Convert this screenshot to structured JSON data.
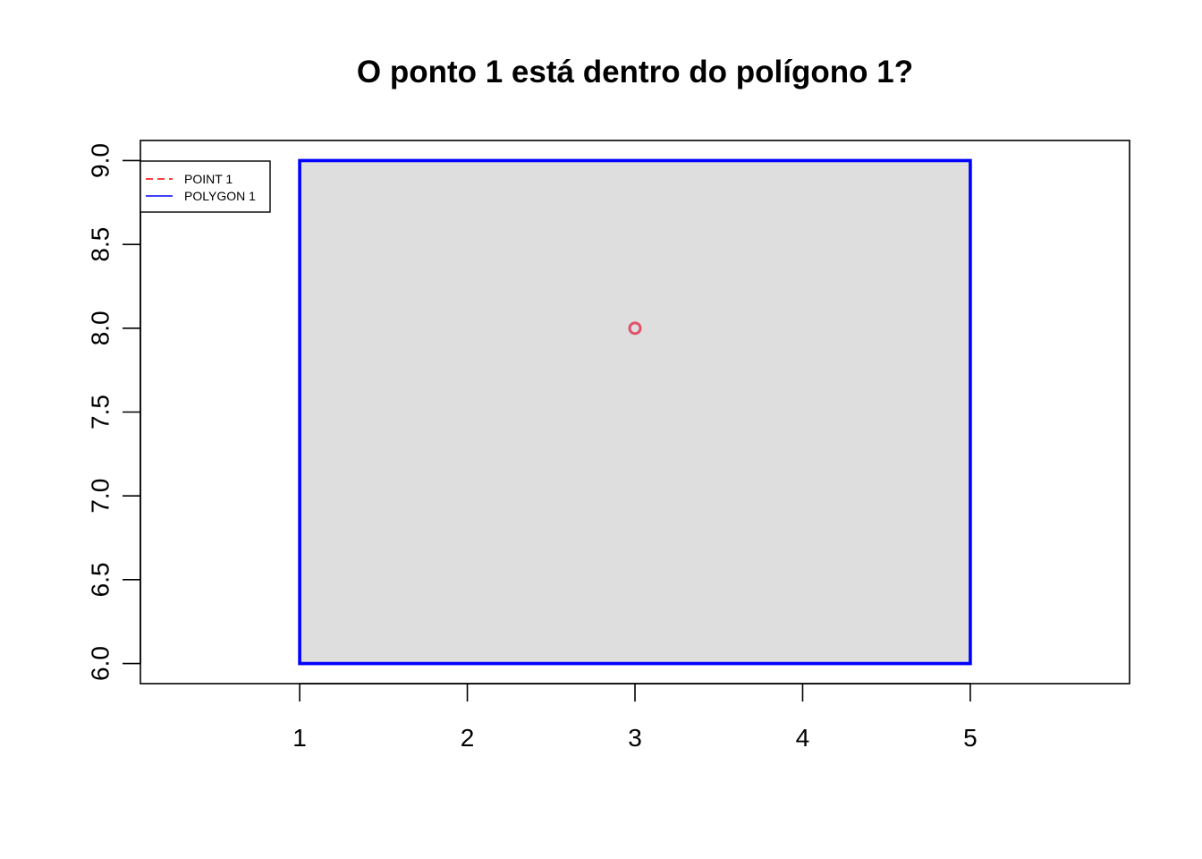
{
  "chart_data": {
    "type": "scatter",
    "title": "O ponto 1 está dentro do polígono 1?",
    "xlabel": "",
    "ylabel": "",
    "xlim": [
      0.05,
      5.95
    ],
    "ylim": [
      5.88,
      9.12
    ],
    "x_ticks": [
      1,
      2,
      3,
      4,
      5
    ],
    "x_tick_labels": [
      "1",
      "2",
      "3",
      "4",
      "5"
    ],
    "y_ticks": [
      6.0,
      6.5,
      7.0,
      7.5,
      8.0,
      8.5,
      9.0
    ],
    "y_tick_labels": [
      "6.0",
      "6.5",
      "7.0",
      "7.5",
      "8.0",
      "8.5",
      "9.0"
    ],
    "grid": false,
    "legend_position": "top-left",
    "series": [
      {
        "name": "POINT 1",
        "kind": "point",
        "color": "#DF536B",
        "legend_color": "#FF0000",
        "legend_line": "dashed",
        "points": [
          {
            "x": 3,
            "y": 8
          }
        ]
      },
      {
        "name": "POLYGON 1",
        "kind": "polygon",
        "color": "#0000FF",
        "fill": "#DEDEDE",
        "legend_color": "#0000FF",
        "legend_line": "solid",
        "vertices": [
          {
            "x": 1,
            "y": 6
          },
          {
            "x": 5,
            "y": 6
          },
          {
            "x": 5,
            "y": 9
          },
          {
            "x": 1,
            "y": 9
          }
        ]
      }
    ]
  }
}
